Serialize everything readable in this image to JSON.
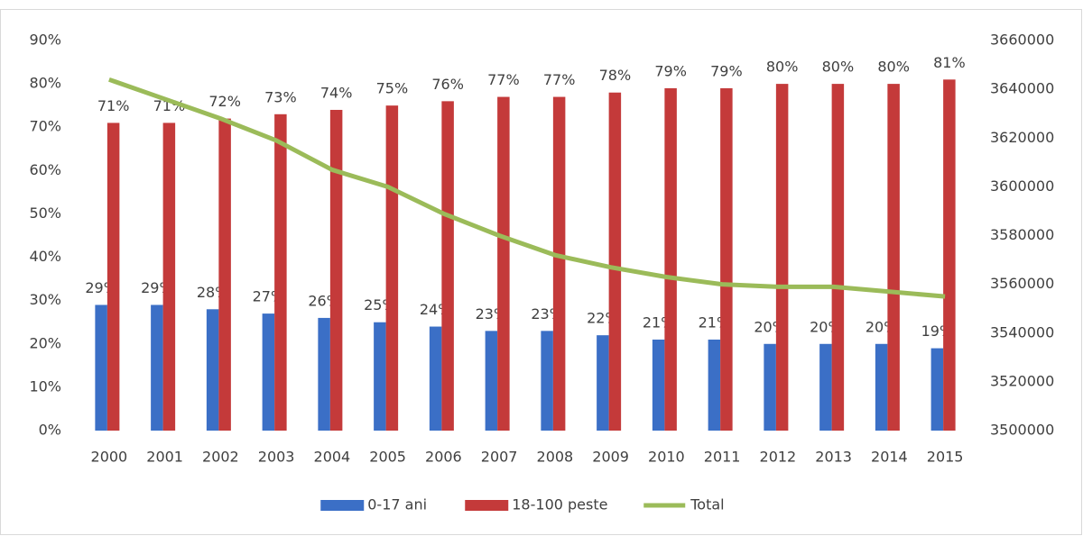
{
  "chart_data": {
    "type": "bar_line",
    "categories": [
      "2000",
      "2001",
      "2002",
      "2003",
      "2004",
      "2005",
      "2006",
      "2007",
      "2008",
      "2009",
      "2010",
      "2011",
      "2012",
      "2013",
      "2014",
      "2015"
    ],
    "series": [
      {
        "name": "0-17 ani",
        "color": "#3b6fc6",
        "type": "bar",
        "values": [
          29,
          29,
          28,
          27,
          26,
          25,
          24,
          23,
          23,
          22,
          21,
          21,
          20,
          20,
          20,
          19
        ],
        "value_labels": [
          "29%",
          "29%",
          "28%",
          "27%",
          "26%",
          "25%",
          "24%",
          "23%",
          "23%",
          "22%",
          "21%",
          "21%",
          "20%",
          "20%",
          "20%",
          "19%"
        ]
      },
      {
        "name": "18-100 peste",
        "color": "#c43a3a",
        "type": "bar",
        "values": [
          71,
          71,
          72,
          73,
          74,
          75,
          76,
          77,
          77,
          78,
          79,
          79,
          80,
          80,
          80,
          81
        ],
        "value_labels": [
          "71%",
          "71%",
          "72%",
          "73%",
          "74%",
          "75%",
          "76%",
          "77%",
          "77%",
          "78%",
          "79%",
          "79%",
          "80%",
          "80%",
          "80%",
          "81%"
        ]
      },
      {
        "name": "Total",
        "color": "#9bbb59",
        "type": "line",
        "axis": "y2",
        "values": [
          3644000,
          3636000,
          3628000,
          3619000,
          3607000,
          3600000,
          3589000,
          3580000,
          3572000,
          3567000,
          3563000,
          3560000,
          3559000,
          3559000,
          3557000,
          3555000
        ]
      }
    ],
    "ylim": [
      0,
      90
    ],
    "yticks": [
      {
        "value": 0,
        "label": "0%"
      },
      {
        "value": 10,
        "label": "10%"
      },
      {
        "value": 20,
        "label": "20%"
      },
      {
        "value": 30,
        "label": "30%"
      },
      {
        "value": 40,
        "label": "40%"
      },
      {
        "value": 50,
        "label": "50%"
      },
      {
        "value": 60,
        "label": "60%"
      },
      {
        "value": 70,
        "label": "70%"
      },
      {
        "value": 80,
        "label": "80%"
      },
      {
        "value": 90,
        "label": "90%"
      }
    ],
    "y2lim": [
      3500000,
      3660000
    ],
    "y2ticks": [
      3500000,
      3520000,
      3540000,
      3560000,
      3580000,
      3600000,
      3620000,
      3640000,
      3660000
    ],
    "grid": false,
    "legend": "bottom"
  }
}
